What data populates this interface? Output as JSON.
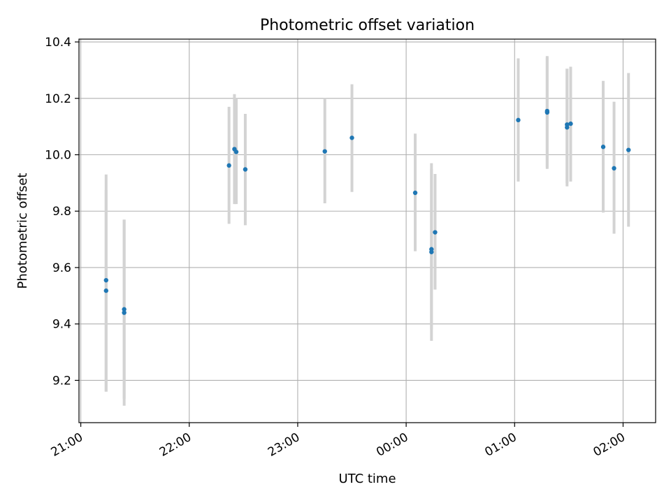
{
  "chart_data": {
    "type": "scatter",
    "title": "Photometric offset variation",
    "xlabel": "UTC time",
    "ylabel": "Photometric offset",
    "x_ticks": [
      "21:00",
      "22:00",
      "23:00",
      "00:00",
      "01:00",
      "02:00"
    ],
    "y_ticks": [
      "9.2",
      "9.4",
      "9.6",
      "9.8",
      "10.0",
      "10.2",
      "10.4"
    ],
    "xlim": [
      "20:59",
      "02:18"
    ],
    "ylim": [
      9.05,
      10.41
    ],
    "grid": true,
    "colors": {
      "points": "#1f77b4",
      "errorbars": "#d3d3d3",
      "grid": "#b0b0b0"
    },
    "points": [
      {
        "time": "21:14",
        "y": 9.555,
        "ylow": 9.16,
        "yhigh": 9.93
      },
      {
        "time": "21:14",
        "y": 9.518,
        "ylow": 9.16,
        "yhigh": 9.875
      },
      {
        "time": "21:24",
        "y": 9.452,
        "ylow": 9.135,
        "yhigh": 9.77
      },
      {
        "time": "21:24",
        "y": 9.44,
        "ylow": 9.11,
        "yhigh": 9.77
      },
      {
        "time": "22:22",
        "y": 9.962,
        "ylow": 9.755,
        "yhigh": 10.17
      },
      {
        "time": "22:25",
        "y": 10.02,
        "ylow": 9.825,
        "yhigh": 10.215
      },
      {
        "time": "22:26",
        "y": 10.01,
        "ylow": 9.825,
        "yhigh": 10.2
      },
      {
        "time": "22:31",
        "y": 9.948,
        "ylow": 9.75,
        "yhigh": 10.145
      },
      {
        "time": "23:15",
        "y": 10.012,
        "ylow": 9.828,
        "yhigh": 10.2
      },
      {
        "time": "23:30",
        "y": 10.06,
        "ylow": 9.868,
        "yhigh": 10.25
      },
      {
        "time": "00:05",
        "y": 9.865,
        "ylow": 9.658,
        "yhigh": 10.075
      },
      {
        "time": "00:14",
        "y": 9.665,
        "ylow": 9.38,
        "yhigh": 9.95
      },
      {
        "time": "00:14",
        "y": 9.655,
        "ylow": 9.34,
        "yhigh": 9.97
      },
      {
        "time": "00:16",
        "y": 9.725,
        "ylow": 9.522,
        "yhigh": 9.932
      },
      {
        "time": "01:02",
        "y": 10.123,
        "ylow": 9.905,
        "yhigh": 10.342
      },
      {
        "time": "01:18",
        "y": 10.155,
        "ylow": 9.955,
        "yhigh": 10.35
      },
      {
        "time": "01:18",
        "y": 10.15,
        "ylow": 9.95,
        "yhigh": 10.345
      },
      {
        "time": "01:29",
        "y": 10.097,
        "ylow": 9.888,
        "yhigh": 10.305
      },
      {
        "time": "01:29",
        "y": 10.107,
        "ylow": 9.9,
        "yhigh": 10.305
      },
      {
        "time": "01:31",
        "y": 10.11,
        "ylow": 9.905,
        "yhigh": 10.312
      },
      {
        "time": "01:49",
        "y": 10.028,
        "ylow": 9.795,
        "yhigh": 10.262
      },
      {
        "time": "01:55",
        "y": 9.952,
        "ylow": 9.72,
        "yhigh": 10.188
      },
      {
        "time": "02:03",
        "y": 10.017,
        "ylow": 9.745,
        "yhigh": 10.29
      }
    ]
  }
}
